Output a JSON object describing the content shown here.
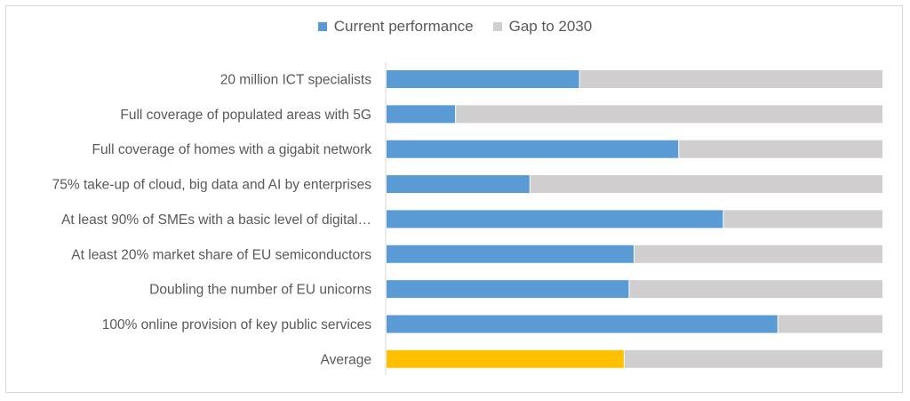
{
  "chart_data": {
    "type": "bar",
    "orientation": "horizontal",
    "stacked": true,
    "normalized": true,
    "categories": [
      "20 million ICT specialists",
      "Full coverage of populated areas with 5G",
      "Full coverage of homes with a gigabit network",
      "75% take-up of cloud, big data and AI by enterprises",
      "At least 90% of SMEs with a basic level of digital…",
      "At least 20% market share of EU semiconductors",
      "Doubling the number of EU unicorns",
      "100% online provision of key public services",
      "Average"
    ],
    "series": [
      {
        "name": "Current performance",
        "values": [
          0.39,
          0.14,
          0.59,
          0.29,
          0.68,
          0.5,
          0.49,
          0.79,
          0.48
        ],
        "color": "#5b9bd5",
        "highlight_color": "#ffc000"
      },
      {
        "name": "Gap to 2030",
        "values": [
          0.61,
          0.86,
          0.41,
          0.71,
          0.32,
          0.5,
          0.51,
          0.21,
          0.52
        ],
        "color": "#d0cece"
      }
    ],
    "highlight_category": "Average",
    "xlim": [
      0,
      1
    ],
    "grid": false,
    "legend": "top-center",
    "title": "",
    "xlabel": "",
    "ylabel": ""
  }
}
